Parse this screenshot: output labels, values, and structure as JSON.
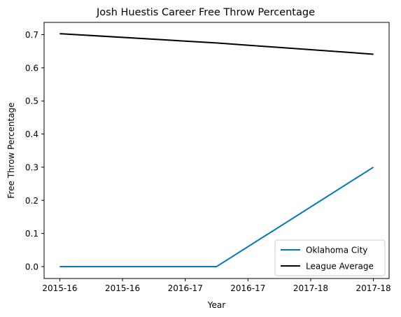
{
  "chart_data": {
    "type": "line",
    "title": "Josh Huestis Career Free Throw Percentage",
    "xlabel": "Year",
    "ylabel": "Free Throw Percentage",
    "x": [
      "2015-16",
      "2015-16",
      "2016-17",
      "2016-17",
      "2017-18",
      "2017-18"
    ],
    "x_positions": [
      0,
      1,
      2,
      3,
      4,
      5
    ],
    "ylim": [
      -0.036,
      0.737
    ],
    "yticks": [
      0.0,
      0.1,
      0.2,
      0.3,
      0.4,
      0.5,
      0.6,
      0.7
    ],
    "grid": false,
    "legend_position": "lower right",
    "series": [
      {
        "name": "Oklahoma City",
        "color": "#0077bb",
        "points": [
          [
            0,
            0.0
          ],
          [
            2.5,
            0.0
          ],
          [
            5,
            0.3
          ]
        ]
      },
      {
        "name": "League Average",
        "color": "#000000",
        "points": [
          [
            0,
            0.703
          ],
          [
            2.5,
            0.675
          ],
          [
            5,
            0.641
          ]
        ]
      }
    ]
  }
}
